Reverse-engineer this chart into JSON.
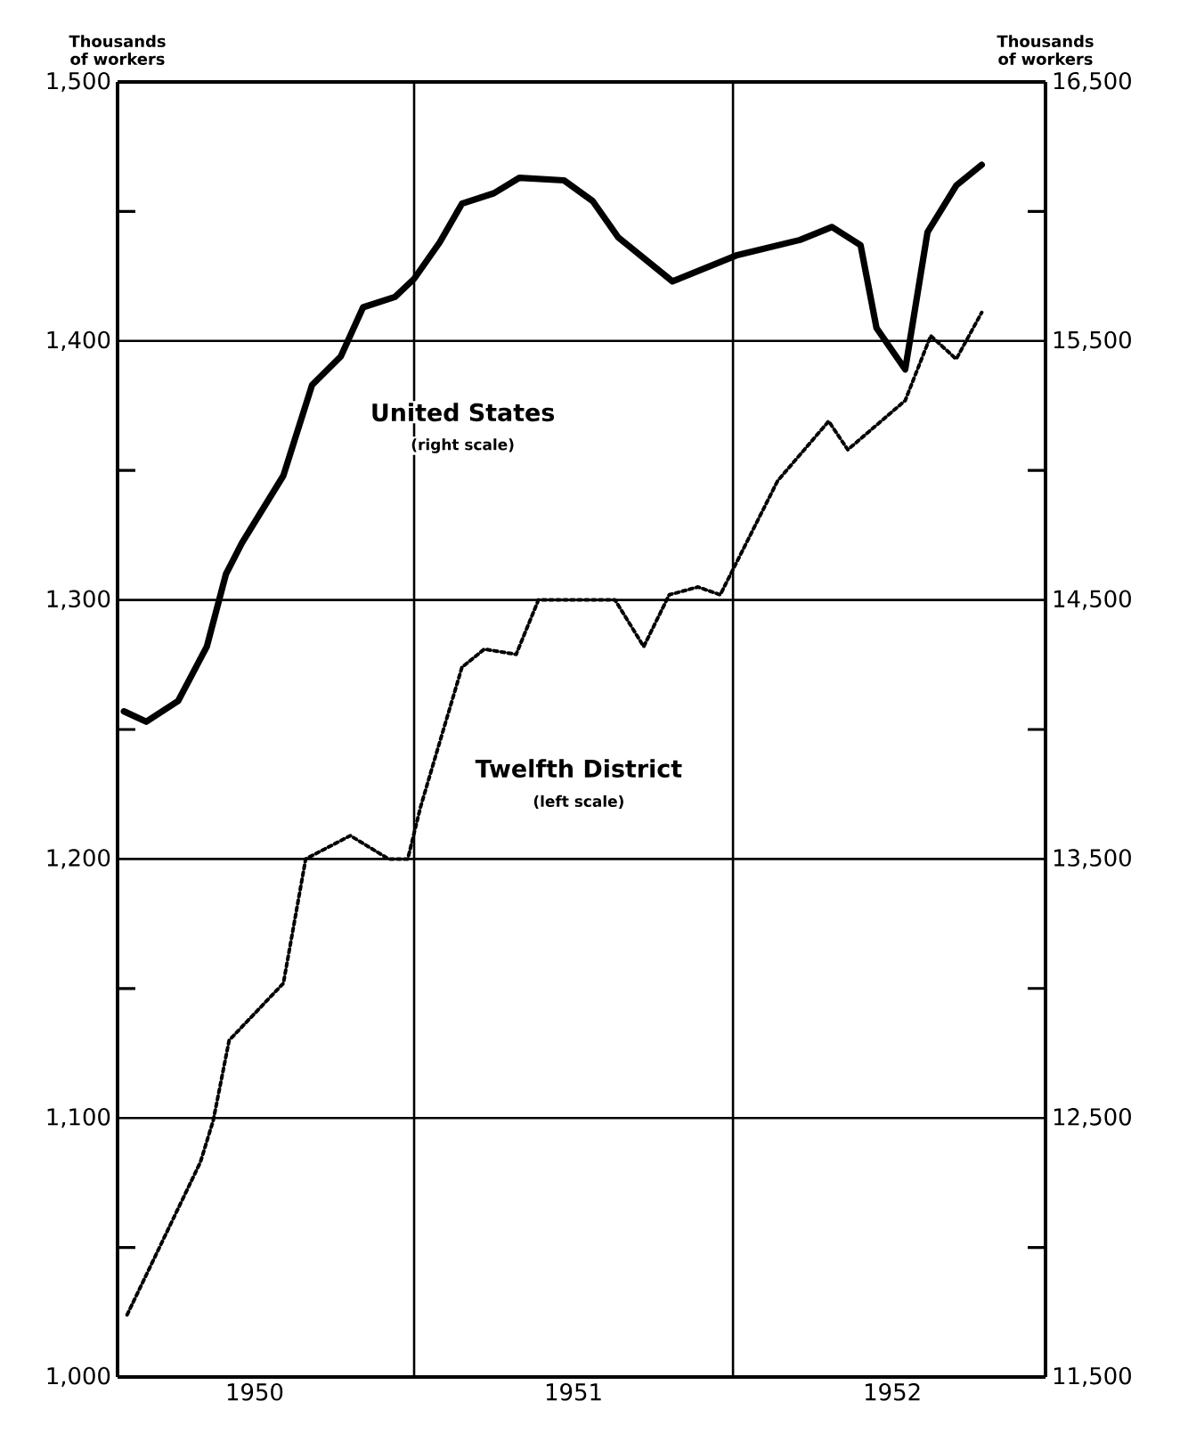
{
  "chart_data": {
    "type": "line",
    "ylabel": "Thousands of workers",
    "y2label": "Thousands of workers",
    "xlim": [
      1950.07,
      1952.98
    ],
    "xticks": [
      {
        "value": 1950.5,
        "label": "1950"
      },
      {
        "value": 1951.5,
        "label": "1951"
      },
      {
        "value": 1952.5,
        "label": "1952"
      }
    ],
    "ylim": [
      1000,
      1500
    ],
    "yticks": [
      {
        "value": 1000,
        "label": "1,000"
      },
      {
        "value": 1050,
        "label": null
      },
      {
        "value": 1100,
        "label": "1,100"
      },
      {
        "value": 1150,
        "label": null
      },
      {
        "value": 1200,
        "label": "1,200"
      },
      {
        "value": 1250,
        "label": null
      },
      {
        "value": 1300,
        "label": "1,300"
      },
      {
        "value": 1350,
        "label": null
      },
      {
        "value": 1400,
        "label": "1,400"
      },
      {
        "value": 1450,
        "label": null
      },
      {
        "value": 1500,
        "label": "1,500"
      }
    ],
    "y2lim": [
      11500,
      16500
    ],
    "y2ticks": [
      {
        "value": 11500,
        "label": "11,500"
      },
      {
        "value": 12000,
        "label": null
      },
      {
        "value": 12500,
        "label": "12,500"
      },
      {
        "value": 13000,
        "label": null
      },
      {
        "value": 13500,
        "label": "13,500"
      },
      {
        "value": 14000,
        "label": null
      },
      {
        "value": 14500,
        "label": "14,500"
      },
      {
        "value": 15000,
        "label": null
      },
      {
        "value": 15500,
        "label": "15,500"
      },
      {
        "value": 16000,
        "label": null
      },
      {
        "value": 16500,
        "label": "16,500"
      }
    ],
    "grid": "y",
    "marker": "none",
    "ref_lines": [
      {
        "axis": "x",
        "value": 1951,
        "color": "#000000"
      },
      {
        "axis": "x",
        "value": 1952,
        "color": "#000000"
      }
    ],
    "series": [
      {
        "name": "United States",
        "axis": "y2",
        "color": "#000000",
        "line_style": "solid",
        "x": [
          1950.09,
          1950.16,
          1950.26,
          1950.35,
          1950.41,
          1950.46,
          1950.59,
          1950.68,
          1950.77,
          1950.84,
          1950.94,
          1951.0,
          1951.08,
          1951.15,
          1951.25,
          1951.33,
          1951.47,
          1951.56,
          1951.64,
          1951.81,
          1952.01,
          1952.21,
          1952.31,
          1952.4,
          1952.45,
          1952.54,
          1952.61,
          1952.7,
          1952.78
        ],
        "values": [
          14070,
          14030,
          14110,
          14320,
          14600,
          14720,
          14980,
          15330,
          15440,
          15630,
          15670,
          15740,
          15880,
          16030,
          16070,
          16130,
          16120,
          16040,
          15900,
          15730,
          15830,
          15890,
          15940,
          15870,
          15550,
          15390,
          15920,
          16100,
          16180
        ]
      },
      {
        "name": "Twelfth District",
        "axis": "y",
        "color": "#000000",
        "line_style": "dotted",
        "x": [
          1950.1,
          1950.33,
          1950.37,
          1950.42,
          1950.59,
          1950.66,
          1950.8,
          1950.92,
          1950.98,
          1951.02,
          1951.08,
          1951.15,
          1951.22,
          1951.32,
          1951.39,
          1951.63,
          1951.72,
          1951.8,
          1951.89,
          1951.96,
          1952.14,
          1952.3,
          1952.36,
          1952.54,
          1952.62,
          1952.7,
          1952.78
        ],
        "values": [
          1024,
          1083,
          1099,
          1130,
          1152,
          1200,
          1209,
          1200,
          1200,
          1220,
          1245,
          1274,
          1281,
          1279,
          1300,
          1300,
          1282,
          1302,
          1305,
          1302,
          1346,
          1369,
          1358,
          1377,
          1402,
          1393,
          1411
        ]
      }
    ],
    "annotations": [
      "(right scale)",
      "(left scale)"
    ]
  }
}
